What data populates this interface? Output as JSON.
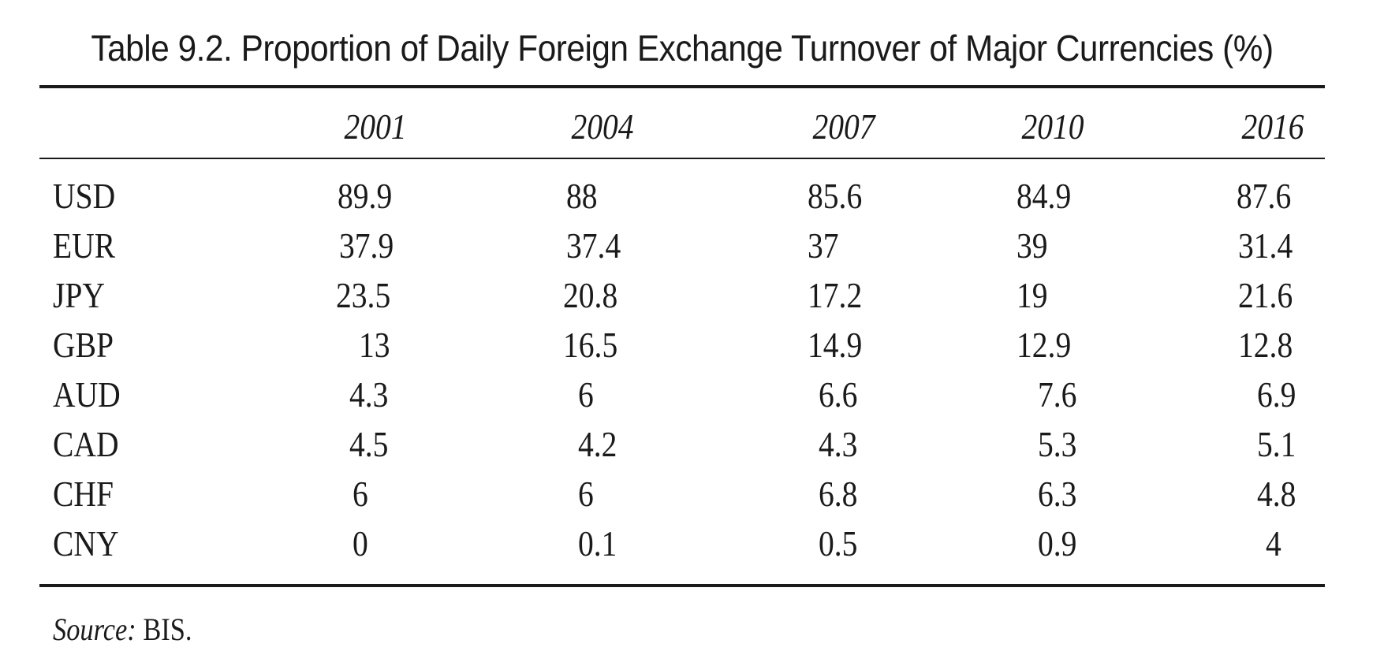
{
  "table": {
    "caption": "Table 9.2. Proportion of Daily Foreign Exchange Turnover of Major Currencies (%)",
    "columns": [
      "2001",
      "2004",
      "2007",
      "2010",
      "2016"
    ],
    "rows": [
      {
        "label": "USD",
        "values": [
          "89.9",
          "88",
          "85.6",
          "84.9",
          "87.6"
        ]
      },
      {
        "label": "EUR",
        "values": [
          "37.9",
          "37.4",
          "37",
          "39",
          "31.4"
        ]
      },
      {
        "label": "JPY",
        "values": [
          "23.5",
          "20.8",
          "17.2",
          "19",
          "21.6"
        ]
      },
      {
        "label": "GBP",
        "values": [
          "13",
          "16.5",
          "14.9",
          "12.9",
          "12.8"
        ]
      },
      {
        "label": "AUD",
        "values": [
          "4.3",
          "6",
          "6.6",
          "7.6",
          "6.9"
        ]
      },
      {
        "label": "CAD",
        "values": [
          "4.5",
          "4.2",
          "4.3",
          "5.3",
          "5.1"
        ]
      },
      {
        "label": "CHF",
        "values": [
          "6",
          "6",
          "6.8",
          "6.3",
          "4.8"
        ]
      },
      {
        "label": "CNY",
        "values": [
          "0",
          "0.1",
          "0.5",
          "0.9",
          "4"
        ]
      }
    ],
    "source_label": "Source:",
    "source_value": "BIS."
  }
}
